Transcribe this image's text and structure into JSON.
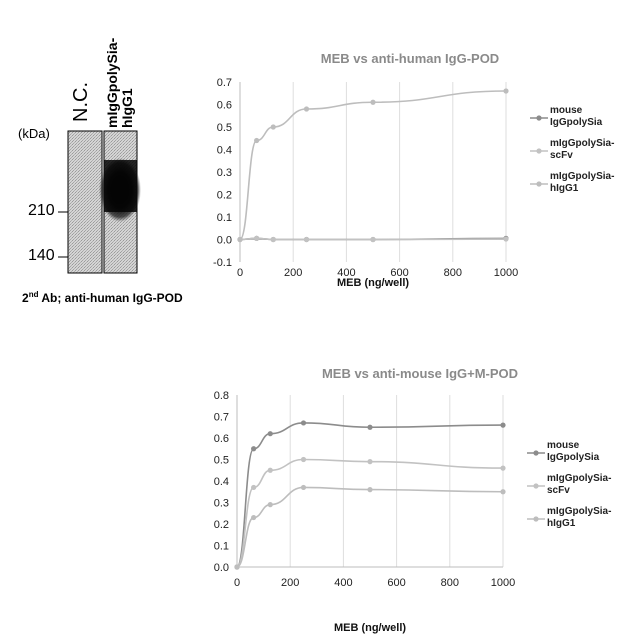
{
  "blot": {
    "lane_labels": [
      "N.C.",
      "mIgGpolySia-",
      "hIgG1"
    ],
    "unit": "(kDa)",
    "markers": [
      "210",
      "140"
    ],
    "caption_prefix": "2",
    "caption_sup": "nd",
    "caption_rest": " Ab; anti-human IgG-POD"
  },
  "chart_data": [
    {
      "type": "line",
      "title": "MEB vs anti-human IgG-POD",
      "xlabel": "MEB (ng/well)",
      "ylabel": "",
      "x": [
        0,
        62.5,
        125,
        250,
        500,
        1000
      ],
      "xticks": [
        0,
        200,
        400,
        600,
        800,
        1000
      ],
      "yticks": [
        -0.1,
        0,
        0.1,
        0.2,
        0.3,
        0.4,
        0.5,
        0.6,
        0.7
      ],
      "xlim": [
        0,
        1000
      ],
      "ylim": [
        -0.1,
        0.7
      ],
      "grid": "vertical",
      "legend_position": "right",
      "series": [
        {
          "name": "mouse IgGpolySia",
          "legend_lines": [
            "mouse",
            "IgGpolySia"
          ],
          "color": "#8c8c8c",
          "values": [
            0,
            0.005,
            0,
            0,
            0,
            0.005
          ]
        },
        {
          "name": "mIgGpolySia-scFv",
          "legend_lines": [
            "mIgGpolySia-",
            "scFv"
          ],
          "color": "#c2c2c2",
          "values": [
            0,
            0.005,
            0,
            0,
            0,
            0.002
          ]
        },
        {
          "name": "mIgGpolySia-hIgG1",
          "legend_lines": [
            "mIgGpolySia-",
            "hIgG1"
          ],
          "color": "#bdbdbd",
          "values": [
            0,
            0.44,
            0.5,
            0.58,
            0.61,
            0.66
          ]
        }
      ]
    },
    {
      "type": "line",
      "title": "MEB vs anti-mouse IgG+M-POD",
      "xlabel": "MEB (ng/well)",
      "ylabel": "",
      "x": [
        0,
        62.5,
        125,
        250,
        500,
        1000
      ],
      "xticks": [
        0,
        200,
        400,
        600,
        800,
        1000
      ],
      "yticks": [
        0,
        0.1,
        0.2,
        0.3,
        0.4,
        0.5,
        0.6,
        0.7,
        0.8
      ],
      "xlim": [
        0,
        1000
      ],
      "ylim": [
        0,
        0.8
      ],
      "grid": "vertical",
      "legend_position": "right",
      "series": [
        {
          "name": "mouse IgGpolySia",
          "legend_lines": [
            "mouse",
            "IgGpolySia"
          ],
          "color": "#8c8c8c",
          "values": [
            0,
            0.55,
            0.62,
            0.67,
            0.65,
            0.66
          ]
        },
        {
          "name": "mIgGpolySia-scFv",
          "legend_lines": [
            "mIgGpolySia-",
            "scFv"
          ],
          "color": "#c2c2c2",
          "values": [
            0,
            0.37,
            0.45,
            0.5,
            0.49,
            0.46
          ]
        },
        {
          "name": "mIgGpolySia-hIgG1",
          "legend_lines": [
            "mIgGpolySia-",
            "hIgG1"
          ],
          "color": "#bdbdbd",
          "values": [
            0,
            0.23,
            0.29,
            0.37,
            0.36,
            0.35
          ]
        }
      ]
    }
  ]
}
